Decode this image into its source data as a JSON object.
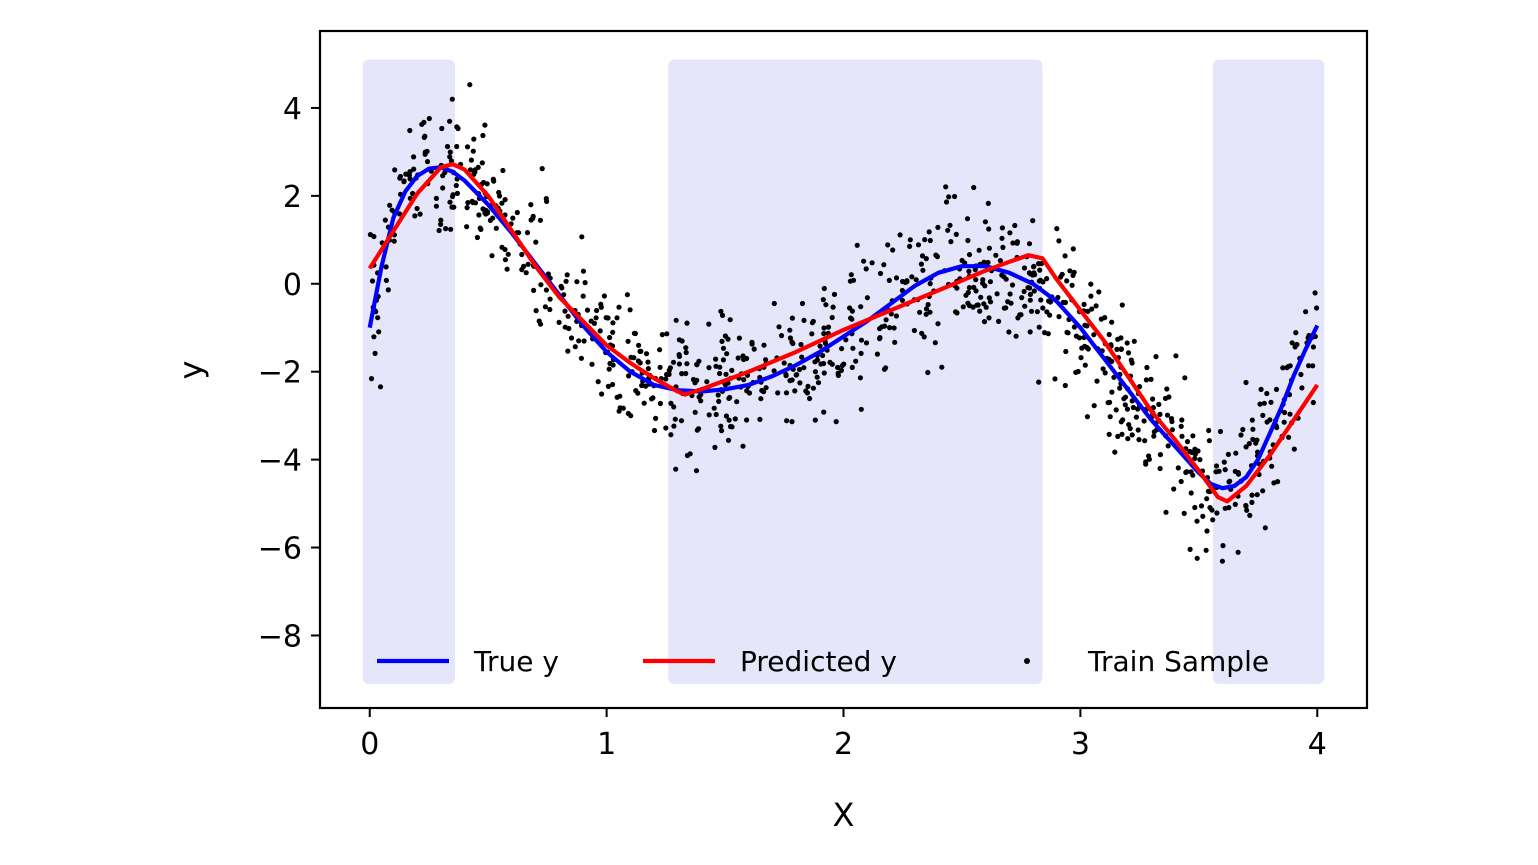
{
  "chart_data": {
    "type": "line",
    "title": "",
    "xlabel": "X",
    "ylabel": "y",
    "xlim": [
      -0.21,
      4.21
    ],
    "ylim": [
      -9.65,
      5.75
    ],
    "xticks": [
      0,
      1,
      2,
      3,
      4
    ],
    "yticks": [
      -8,
      -6,
      -4,
      -2,
      0,
      2,
      4
    ],
    "grid": false,
    "legend_position": "bottom",
    "shaded_regions": {
      "color": "#e6e6fa",
      "y_range": [
        -9.1,
        5.1
      ],
      "x_ranges": [
        [
          -0.03,
          0.36
        ],
        [
          1.26,
          2.84
        ],
        [
          3.56,
          4.03
        ]
      ]
    },
    "series": [
      {
        "name": "True y",
        "kind": "line",
        "color": "#0000ff",
        "x": [
          0.0,
          0.05,
          0.1,
          0.15,
          0.2,
          0.25,
          0.3,
          0.35,
          0.4,
          0.5,
          0.6,
          0.7,
          0.8,
          0.9,
          1.0,
          1.1,
          1.2,
          1.3,
          1.4,
          1.5,
          1.6,
          1.7,
          1.8,
          1.9,
          2.0,
          2.1,
          2.2,
          2.3,
          2.4,
          2.5,
          2.6,
          2.7,
          2.8,
          2.9,
          3.0,
          3.1,
          3.2,
          3.3,
          3.4,
          3.5,
          3.55,
          3.6,
          3.65,
          3.7,
          3.75,
          3.8,
          3.85,
          3.9,
          3.95,
          4.0
        ],
        "y": [
          -1.0,
          0.4,
          1.5,
          2.1,
          2.45,
          2.62,
          2.65,
          2.55,
          2.35,
          1.8,
          1.15,
          0.45,
          -0.25,
          -0.95,
          -1.55,
          -2.0,
          -2.3,
          -2.42,
          -2.45,
          -2.4,
          -2.3,
          -2.1,
          -1.85,
          -1.55,
          -1.2,
          -0.85,
          -0.45,
          -0.05,
          0.25,
          0.4,
          0.4,
          0.25,
          0.0,
          -0.4,
          -1.0,
          -1.7,
          -2.4,
          -3.1,
          -3.7,
          -4.3,
          -4.55,
          -4.65,
          -4.6,
          -4.4,
          -4.0,
          -3.4,
          -2.8,
          -2.1,
          -1.5,
          -0.95
        ]
      },
      {
        "name": "Predicted y",
        "kind": "line",
        "color": "#ff0000",
        "x": [
          0.0,
          0.1,
          0.2,
          0.3,
          0.35,
          0.4,
          0.5,
          0.6,
          0.7,
          0.8,
          0.9,
          1.0,
          1.1,
          1.2,
          1.3,
          1.33,
          1.4,
          1.6,
          1.8,
          2.0,
          2.2,
          2.4,
          2.6,
          2.7,
          2.78,
          2.84,
          2.9,
          3.0,
          3.1,
          3.2,
          3.3,
          3.4,
          3.5,
          3.58,
          3.62,
          3.7,
          3.8,
          3.9,
          4.0
        ],
        "y": [
          0.35,
          1.2,
          2.05,
          2.65,
          2.72,
          2.6,
          2.0,
          1.2,
          0.4,
          -0.3,
          -0.85,
          -1.4,
          -1.8,
          -2.15,
          -2.45,
          -2.52,
          -2.4,
          -2.0,
          -1.55,
          -1.05,
          -0.6,
          -0.15,
          0.3,
          0.5,
          0.65,
          0.58,
          0.1,
          -0.6,
          -1.3,
          -2.1,
          -2.9,
          -3.55,
          -4.25,
          -4.85,
          -4.95,
          -4.6,
          -3.9,
          -3.1,
          -2.3
        ]
      },
      {
        "name": "Train Sample",
        "kind": "scatter",
        "color": "#000000",
        "count": 1000
      }
    ]
  }
}
